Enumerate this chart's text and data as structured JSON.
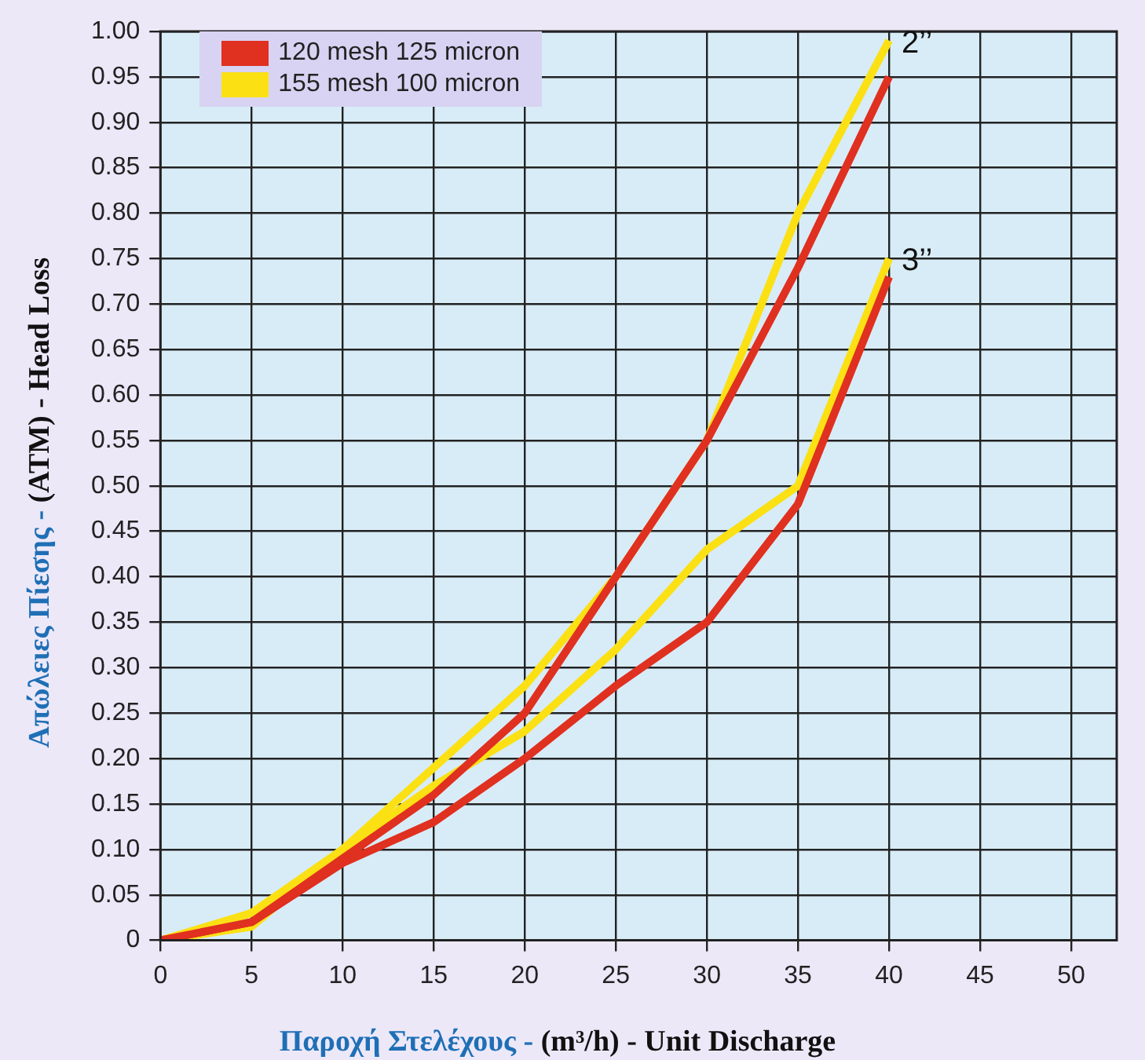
{
  "chart_data": {
    "type": "line",
    "xlabel": "Παροχή Στελέχους - (m³/h) - Unit Discharge",
    "ylabel": "Απώλειες Πίεσης - (ATM) - Head Loss",
    "x": [
      0,
      5,
      10,
      15,
      20,
      25,
      30,
      35,
      40
    ],
    "series": [
      {
        "name": "120 mesh 125 micron",
        "color": "#e03020",
        "values": [
          0,
          0.02,
          0.09,
          0.16,
          0.25,
          0.4,
          0.55,
          0.74,
          0.95
        ]
      },
      {
        "name": "155 mesh 100 micron",
        "color": "#fbe014",
        "values": [
          0,
          0.03,
          0.1,
          0.19,
          0.28,
          0.4,
          0.55,
          0.8,
          0.99
        ]
      },
      {
        "color": "#e03020",
        "values": [
          0,
          0.02,
          0.085,
          0.13,
          0.2,
          0.28,
          0.35,
          0.48,
          0.73
        ]
      },
      {
        "color": "#fbe014",
        "values": [
          0,
          0.015,
          0.1,
          0.17,
          0.23,
          0.32,
          0.43,
          0.5,
          0.75
        ]
      }
    ],
    "annotations": [
      {
        "text": "2’’",
        "x": 40,
        "y": 0.99
      },
      {
        "text": "3’’",
        "x": 40,
        "y": 0.75
      }
    ],
    "xlim": [
      0,
      52.5
    ],
    "xticks": [
      0,
      5,
      10,
      15,
      20,
      25,
      30,
      35,
      40,
      45,
      50
    ],
    "ylim": [
      0,
      1
    ],
    "yticks": [
      {
        "value": 0,
        "label": "0"
      },
      {
        "value": 0.05,
        "label": "0.05"
      },
      {
        "value": 0.1,
        "label": "0.10"
      },
      {
        "value": 0.15,
        "label": "0.15"
      },
      {
        "value": 0.2,
        "label": "0.20"
      },
      {
        "value": 0.25,
        "label": "0.25"
      },
      {
        "value": 0.3,
        "label": "0.30"
      },
      {
        "value": 0.35,
        "label": "0.35"
      },
      {
        "value": 0.4,
        "label": "0.40"
      },
      {
        "value": 0.45,
        "label": "0.45"
      },
      {
        "value": 0.5,
        "label": "0.50"
      },
      {
        "value": 0.55,
        "label": "0.55"
      },
      {
        "value": 0.6,
        "label": "0.60"
      },
      {
        "value": 0.65,
        "label": "0.65"
      },
      {
        "value": 0.7,
        "label": "0.70"
      },
      {
        "value": 0.75,
        "label": "0.75"
      },
      {
        "value": 0.8,
        "label": "0.80"
      },
      {
        "value": 0.85,
        "label": "0.85"
      },
      {
        "value": 0.9,
        "label": "0.90"
      },
      {
        "value": 0.95,
        "label": "0.95"
      },
      {
        "value": 1,
        "label": "1.00"
      }
    ],
    "grid": true,
    "legend": "top left",
    "marker": "none",
    "line_style": "solid"
  }
}
